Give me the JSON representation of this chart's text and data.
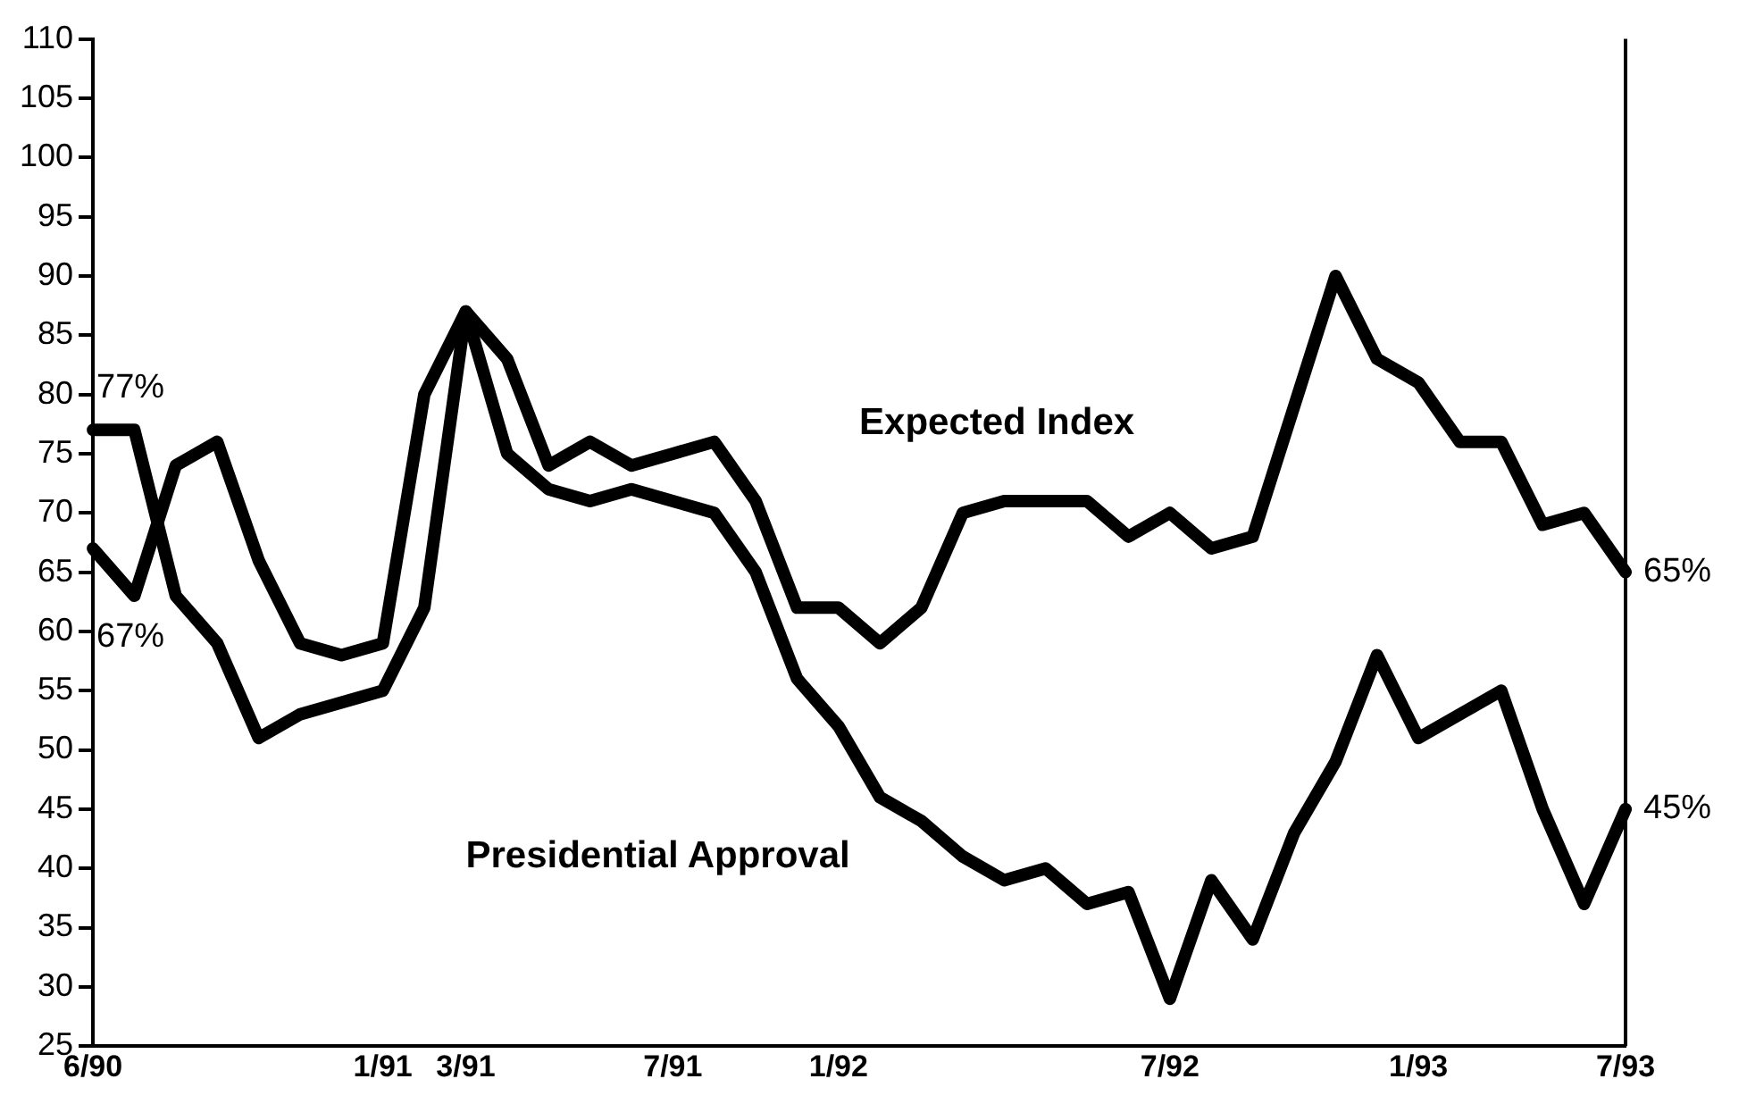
{
  "chart_data": {
    "type": "line",
    "categories": [
      "6/90",
      null,
      null,
      null,
      null,
      null,
      null,
      "1/91",
      null,
      "3/91",
      null,
      null,
      null,
      null,
      "7/91",
      null,
      null,
      null,
      "1/92",
      null,
      null,
      null,
      null,
      null,
      null,
      null,
      "7/92",
      null,
      null,
      null,
      null,
      null,
      "1/93",
      null,
      null,
      null,
      null,
      "7/93"
    ],
    "series": [
      {
        "name": "Presidential Approval",
        "color": "#000000",
        "values": [
          77,
          77,
          63,
          59,
          51,
          53,
          54,
          55,
          62,
          87,
          75,
          72,
          71,
          72,
          71,
          70,
          65,
          56,
          52,
          46,
          44,
          41,
          39,
          40,
          37,
          38,
          29,
          39,
          34,
          43,
          49,
          58,
          51,
          53,
          55,
          45,
          37,
          45
        ]
      },
      {
        "name": "Expected Index",
        "color": "#000000",
        "values": [
          67,
          63,
          74,
          76,
          66,
          59,
          58,
          59,
          80,
          87,
          83,
          74,
          76,
          74,
          75,
          76,
          71,
          62,
          62,
          59,
          62,
          70,
          71,
          71,
          71,
          68,
          70,
          67,
          68,
          79,
          90,
          83,
          81,
          76,
          76,
          69,
          70,
          65
        ]
      }
    ],
    "ylim": [
      25,
      110
    ],
    "yticks": [
      25,
      30,
      35,
      40,
      45,
      50,
      55,
      60,
      65,
      70,
      75,
      80,
      85,
      90,
      95,
      100,
      105,
      110
    ],
    "annotations": [
      {
        "text": "77%",
        "x": "6/90",
        "y": 77
      },
      {
        "text": "67%",
        "x": "6/90",
        "y": 67
      },
      {
        "text": "65%",
        "x": "7/93",
        "y": 65
      },
      {
        "text": "45%",
        "x": "7/93",
        "y": 45
      }
    ],
    "grid": false,
    "legend": false,
    "marker": "none",
    "line_style": "solid"
  }
}
